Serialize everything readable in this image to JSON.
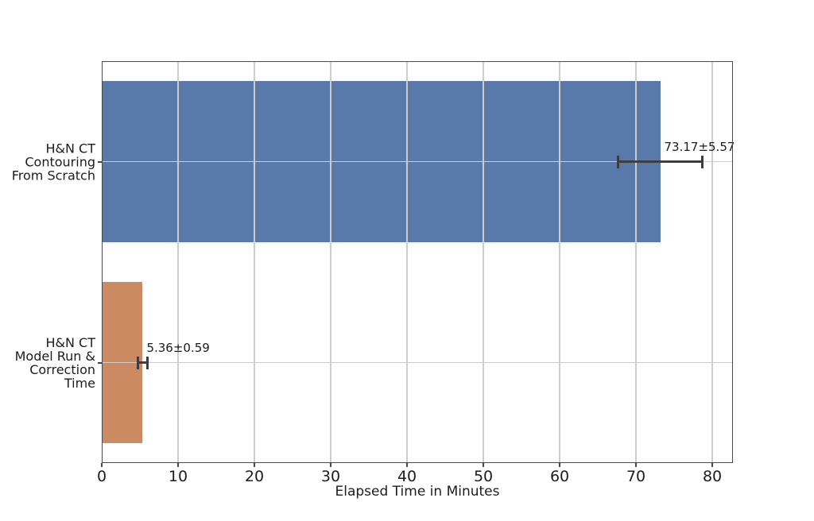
{
  "chart_data": {
    "type": "bar",
    "orientation": "horizontal",
    "title": "",
    "xlabel": "Elapsed Time in Minutes",
    "ylabel": "",
    "categories": [
      "H&N CT\nContouring\nFrom Scratch",
      "H&N CT\nModel Run &\nCorrection\nTime"
    ],
    "values": [
      73.17,
      5.36
    ],
    "errors": [
      5.57,
      0.59
    ],
    "annotations": [
      "73.17±5.57",
      "5.36±0.59"
    ],
    "x_ticks": [
      0,
      10,
      20,
      30,
      40,
      50,
      60,
      70,
      80
    ],
    "xlim": [
      0,
      82.7
    ],
    "bar_height_fraction": 0.8,
    "grid": true,
    "legend": "none",
    "colors": {
      "bar_blue": "#5a79ab",
      "bar_orange": "#cc8a63",
      "bar_colors": [
        "#5a79ab",
        "#cc8a63"
      ],
      "grid": "#cdcdcd",
      "spine": "#484848",
      "error_bar": "#3d3d3d",
      "text": "#1c1c1c",
      "background": "#ffffff"
    }
  }
}
